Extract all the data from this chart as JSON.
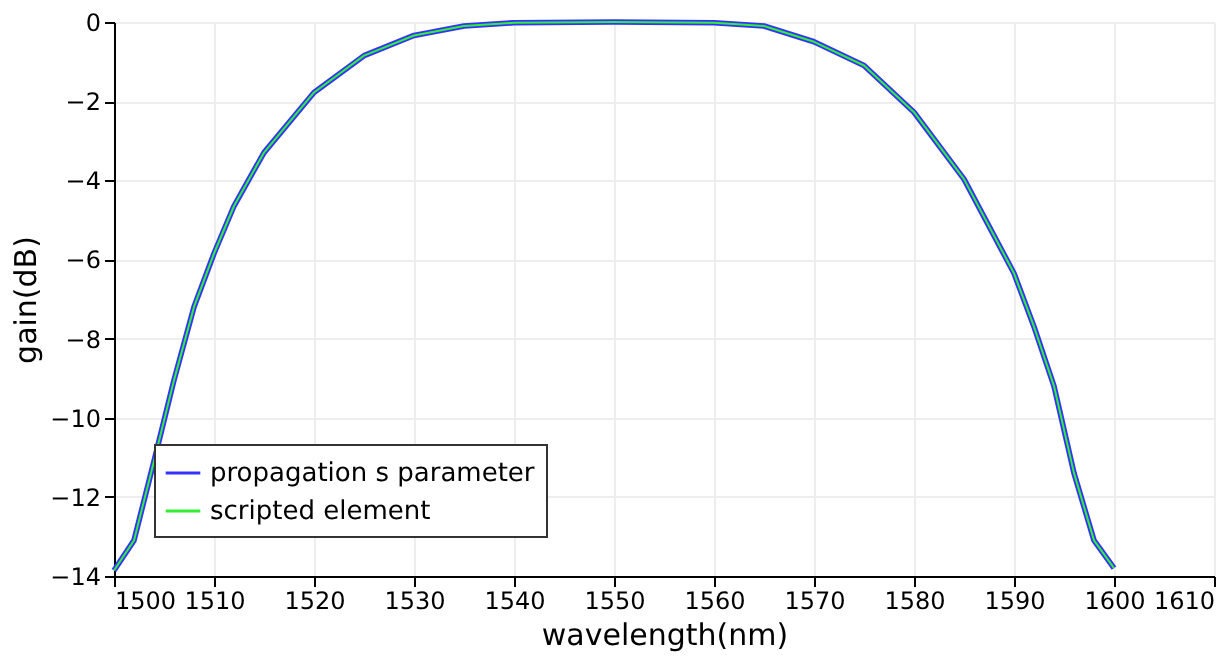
{
  "chart_data": {
    "type": "line",
    "xlabel": "wavelength(nm)",
    "ylabel": "gain(dB)",
    "x": [
      1500,
      1502,
      1504,
      1506,
      1508,
      1510,
      1512,
      1515,
      1520,
      1525,
      1530,
      1535,
      1540,
      1550,
      1560,
      1565,
      1570,
      1575,
      1580,
      1585,
      1590,
      1592,
      1594,
      1596,
      1598,
      1600
    ],
    "series": [
      {
        "name": "propagation s parameter",
        "color": "#3333ff",
        "values": [
          -13.86,
          -13.1,
          -11.1,
          -9.05,
          -7.2,
          -5.85,
          -4.65,
          -3.3,
          -1.78,
          -0.85,
          -0.34,
          -0.1,
          -0.02,
          0,
          -0.02,
          -0.1,
          -0.5,
          -1.1,
          -2.28,
          -3.97,
          -6.35,
          -7.7,
          -9.2,
          -11.4,
          -13.1,
          -13.8
        ]
      },
      {
        "name": "scripted element",
        "color": "#33ee33",
        "values": [
          -13.86,
          -13.1,
          -11.1,
          -9.05,
          -7.2,
          -5.85,
          -4.65,
          -3.3,
          -1.78,
          -0.85,
          -0.34,
          -0.1,
          -0.02,
          0,
          -0.02,
          -0.1,
          -0.5,
          -1.1,
          -2.28,
          -3.97,
          -6.35,
          -7.7,
          -9.2,
          -11.4,
          -13.1,
          -13.8
        ]
      }
    ],
    "xlim": [
      1500,
      1610
    ],
    "xticks": [
      1500,
      1510,
      1520,
      1530,
      1540,
      1550,
      1560,
      1570,
      1580,
      1590,
      1600,
      1610
    ],
    "ylim": [
      -14,
      0
    ],
    "yticks": [
      -14,
      -12,
      -10,
      -8,
      -6,
      -4,
      -2,
      0
    ],
    "grid": true,
    "legend": "bottom left",
    "marker": "none",
    "line_style": "solid"
  }
}
